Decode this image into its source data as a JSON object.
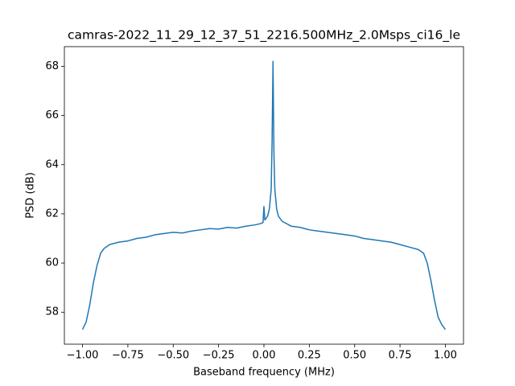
{
  "chart_data": {
    "type": "line",
    "title": "camras-2022_11_29_12_37_51_2216.500MHz_2.0Msps_ci16_le",
    "x_label": "Baseband frequency (MHz)",
    "y_label": "PSD (dB)",
    "x": [
      -1.0,
      -0.98,
      -0.96,
      -0.94,
      -0.92,
      -0.9,
      -0.88,
      -0.85,
      -0.8,
      -0.75,
      -0.7,
      -0.65,
      -0.6,
      -0.55,
      -0.5,
      -0.45,
      -0.4,
      -0.35,
      -0.3,
      -0.25,
      -0.2,
      -0.15,
      -0.1,
      -0.05,
      -0.02,
      -0.005,
      0.0,
      0.005,
      0.02,
      0.03,
      0.04,
      0.045,
      0.05,
      0.055,
      0.06,
      0.07,
      0.08,
      0.1,
      0.15,
      0.2,
      0.25,
      0.3,
      0.35,
      0.4,
      0.45,
      0.5,
      0.55,
      0.6,
      0.65,
      0.7,
      0.75,
      0.8,
      0.85,
      0.88,
      0.9,
      0.92,
      0.94,
      0.96,
      0.98,
      1.0
    ],
    "series": [
      {
        "name": "PSD",
        "color": "#1f77b4",
        "values": [
          57.3,
          57.6,
          58.3,
          59.2,
          59.9,
          60.4,
          60.6,
          60.75,
          60.85,
          60.9,
          61.0,
          61.05,
          61.15,
          61.2,
          61.25,
          61.22,
          61.3,
          61.35,
          61.4,
          61.38,
          61.45,
          61.42,
          61.5,
          61.55,
          61.6,
          61.65,
          62.3,
          61.75,
          61.9,
          62.2,
          63.0,
          65.0,
          68.2,
          64.5,
          63.0,
          62.2,
          61.9,
          61.7,
          61.5,
          61.45,
          61.35,
          61.3,
          61.25,
          61.2,
          61.15,
          61.1,
          61.0,
          60.95,
          60.9,
          60.85,
          60.75,
          60.65,
          60.55,
          60.4,
          60.0,
          59.3,
          58.5,
          57.8,
          57.5,
          57.3
        ]
      }
    ],
    "xlim": [
      -1.1,
      1.1
    ],
    "ylim": [
      56.7,
      68.8
    ],
    "xticks": [
      {
        "value": -1,
        "label": "−1.00"
      },
      {
        "value": -0.75,
        "label": "−0.75"
      },
      {
        "value": -0.5,
        "label": "−0.50"
      },
      {
        "value": -0.25,
        "label": "−0.25"
      },
      {
        "value": 0,
        "label": "0.00"
      },
      {
        "value": 0.25,
        "label": "0.25"
      },
      {
        "value": 0.5,
        "label": "0.50"
      },
      {
        "value": 0.75,
        "label": "0.75"
      },
      {
        "value": 1,
        "label": "1.00"
      }
    ],
    "yticks": [
      58,
      60,
      62,
      64,
      66,
      68
    ],
    "grid": false
  }
}
